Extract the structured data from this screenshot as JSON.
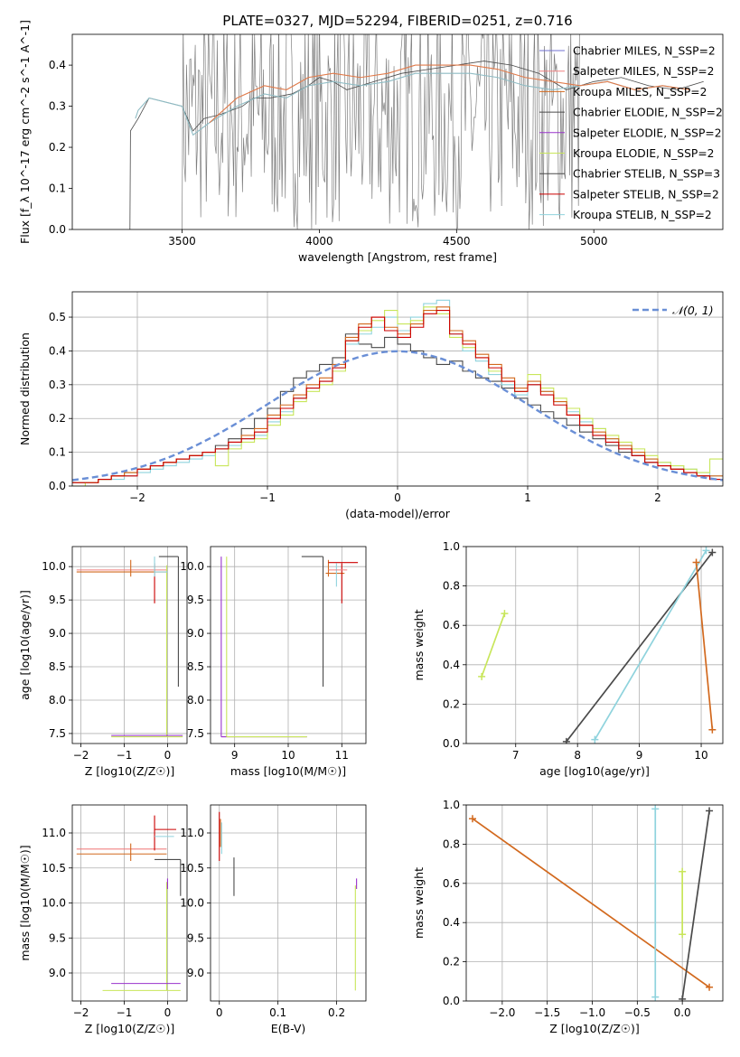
{
  "suptitle": "PLATE=0327, MJD=52294, FIBERID=0251, z=0.716",
  "chart_data": [
    {
      "id": "spectrum",
      "type": "line",
      "xlabel": "wavelength [Angstrom, rest frame]",
      "ylabel": "Flux [f_λ 10^-17 erg cm^-2 s^-1 A^-1]",
      "xlim": [
        3100,
        5470
      ],
      "ylim": [
        0,
        0.475
      ],
      "xticks": [
        3500,
        4000,
        4500,
        5000
      ],
      "yticks": [
        0.0,
        0.1,
        0.2,
        0.3,
        0.4
      ],
      "grid": false,
      "legend_position": "top-right",
      "data_spectrum": [
        [
          3310,
          0.0
        ],
        [
          3312,
          0.24
        ],
        [
          3340,
          0.27
        ],
        [
          3380,
          0.32
        ],
        [
          3440,
          0.31
        ],
        [
          3500,
          0.3
        ],
        [
          3540,
          0.24
        ],
        [
          3580,
          0.27
        ],
        [
          3640,
          0.28
        ],
        [
          3720,
          0.3
        ],
        [
          3760,
          0.32
        ],
        [
          3820,
          0.32
        ],
        [
          3900,
          0.33
        ],
        [
          3960,
          0.35
        ],
        [
          4000,
          0.37
        ],
        [
          4050,
          0.36
        ],
        [
          4100,
          0.34
        ],
        [
          4200,
          0.36
        ],
        [
          4300,
          0.38
        ],
        [
          4400,
          0.39
        ],
        [
          4500,
          0.4
        ],
        [
          4600,
          0.41
        ],
        [
          4700,
          0.4
        ],
        [
          4800,
          0.38
        ],
        [
          4900,
          0.34
        ],
        [
          5000,
          0.36
        ],
        [
          5100,
          0.37
        ],
        [
          5200,
          0.35
        ],
        [
          5300,
          0.34
        ],
        [
          5400,
          0.36
        ]
      ],
      "model_spectrum": [
        [
          3330,
          0.27
        ],
        [
          3340,
          0.29
        ],
        [
          3380,
          0.32
        ],
        [
          3440,
          0.31
        ],
        [
          3500,
          0.3
        ],
        [
          3540,
          0.23
        ],
        [
          3600,
          0.26
        ],
        [
          3700,
          0.3
        ],
        [
          3800,
          0.33
        ],
        [
          3880,
          0.32
        ],
        [
          3960,
          0.35
        ],
        [
          4050,
          0.36
        ],
        [
          4150,
          0.35
        ],
        [
          4250,
          0.36
        ],
        [
          4350,
          0.38
        ],
        [
          4450,
          0.38
        ],
        [
          4550,
          0.38
        ],
        [
          4650,
          0.37
        ],
        [
          4750,
          0.35
        ],
        [
          4850,
          0.34
        ],
        [
          4950,
          0.35
        ],
        [
          5050,
          0.36
        ],
        [
          5150,
          0.34
        ],
        [
          5250,
          0.35
        ],
        [
          5350,
          0.34
        ]
      ],
      "noisy_region": {
        "from": 3500,
        "to": 4950
      },
      "legend": [
        {
          "label": "Chabrier MILES, N_SSP=2",
          "color": "#7070d0"
        },
        {
          "label": "Salpeter MILES, N_SSP=2",
          "color": "#f08080"
        },
        {
          "label": "Kroupa MILES, N_SSP=2",
          "color": "#d2691e"
        },
        {
          "label": "Chabrier ELODIE, N_SSP=2",
          "color": "#4a4a4a"
        },
        {
          "label": "Salpeter ELODIE, N_SSP=2",
          "color": "#9932cc"
        },
        {
          "label": "Kroupa ELODIE, N_SSP=2",
          "color": "#c8e65a"
        },
        {
          "label": "Chabrier STELIB, N_SSP=3",
          "color": "#4a4a4a"
        },
        {
          "label": "Salpeter STELIB, N_SSP=2",
          "color": "#cc0000"
        },
        {
          "label": "Kroupa STELIB, N_SSP=2",
          "color": "#8fd3dd"
        }
      ]
    },
    {
      "id": "residuals",
      "type": "line",
      "xlabel": "(data-model)/error",
      "ylabel": "Normed distribution",
      "xlim": [
        -2.5,
        2.5
      ],
      "ylim": [
        0,
        0.575
      ],
      "xticks": [
        -2,
        -1,
        0,
        1,
        2
      ],
      "yticks": [
        0.0,
        0.1,
        0.2,
        0.3,
        0.4,
        0.5
      ],
      "grid": true,
      "legend_position": "top-right",
      "legend": [
        {
          "label": "𝒩(0, 1)",
          "color": "#6a8fd6"
        }
      ],
      "bin_edges": [
        -2.5,
        -2.4,
        -2.3,
        -2.2,
        -2.1,
        -2.0,
        -1.9,
        -1.8,
        -1.7,
        -1.6,
        -1.5,
        -1.4,
        -1.3,
        -1.2,
        -1.1,
        -1.0,
        -0.9,
        -0.8,
        -0.7,
        -0.6,
        -0.5,
        -0.4,
        -0.3,
        -0.2,
        -0.1,
        0.0,
        0.1,
        0.2,
        0.3,
        0.4,
        0.5,
        0.6,
        0.7,
        0.8,
        0.9,
        1.0,
        1.1,
        1.2,
        1.3,
        1.4,
        1.5,
        1.6,
        1.7,
        1.8,
        1.9,
        2.0,
        2.1,
        2.2,
        2.3,
        2.4,
        2.5
      ],
      "series": [
        {
          "color": "#4a4a4a",
          "values": [
            0.01,
            0.01,
            0.02,
            0.03,
            0.04,
            0.05,
            0.06,
            0.07,
            0.08,
            0.09,
            0.1,
            0.12,
            0.14,
            0.17,
            0.2,
            0.23,
            0.28,
            0.32,
            0.34,
            0.36,
            0.38,
            0.45,
            0.42,
            0.41,
            0.44,
            0.42,
            0.4,
            0.38,
            0.36,
            0.37,
            0.34,
            0.32,
            0.31,
            0.29,
            0.26,
            0.24,
            0.22,
            0.2,
            0.18,
            0.16,
            0.14,
            0.12,
            0.1,
            0.09,
            0.07,
            0.06,
            0.05,
            0.04,
            0.03,
            0.02
          ]
        },
        {
          "color": "#8fd3dd",
          "values": [
            0.0,
            0.01,
            0.02,
            0.02,
            0.03,
            0.04,
            0.05,
            0.06,
            0.07,
            0.08,
            0.09,
            0.11,
            0.12,
            0.14,
            0.15,
            0.19,
            0.22,
            0.26,
            0.29,
            0.31,
            0.35,
            0.42,
            0.45,
            0.47,
            0.5,
            0.46,
            0.5,
            0.54,
            0.55,
            0.45,
            0.4,
            0.37,
            0.33,
            0.3,
            0.27,
            0.3,
            0.28,
            0.25,
            0.22,
            0.19,
            0.17,
            0.14,
            0.12,
            0.1,
            0.08,
            0.07,
            0.06,
            0.05,
            0.04,
            0.03
          ]
        },
        {
          "color": "#c8e65a",
          "values": [
            0.0,
            0.01,
            0.02,
            0.03,
            0.04,
            0.05,
            0.06,
            0.07,
            0.08,
            0.09,
            0.1,
            0.06,
            0.11,
            0.13,
            0.14,
            0.18,
            0.21,
            0.25,
            0.28,
            0.3,
            0.34,
            0.43,
            0.46,
            0.49,
            0.52,
            0.48,
            0.49,
            0.53,
            0.51,
            0.44,
            0.41,
            0.38,
            0.34,
            0.31,
            0.28,
            0.33,
            0.29,
            0.26,
            0.23,
            0.2,
            0.17,
            0.15,
            0.13,
            0.11,
            0.09,
            0.07,
            0.06,
            0.05,
            0.04,
            0.08
          ]
        },
        {
          "color": "#d2691e",
          "values": [
            0.01,
            0.01,
            0.02,
            0.03,
            0.04,
            0.05,
            0.06,
            0.07,
            0.08,
            0.09,
            0.1,
            0.11,
            0.13,
            0.15,
            0.17,
            0.21,
            0.24,
            0.27,
            0.3,
            0.32,
            0.36,
            0.44,
            0.48,
            0.5,
            0.47,
            0.45,
            0.48,
            0.52,
            0.53,
            0.46,
            0.43,
            0.39,
            0.36,
            0.32,
            0.29,
            0.31,
            0.28,
            0.25,
            0.21,
            0.18,
            0.16,
            0.14,
            0.12,
            0.1,
            0.08,
            0.06,
            0.05,
            0.04,
            0.03,
            0.03
          ]
        },
        {
          "color": "#cc0000",
          "values": [
            0.01,
            0.01,
            0.02,
            0.03,
            0.03,
            0.05,
            0.06,
            0.07,
            0.08,
            0.09,
            0.1,
            0.11,
            0.13,
            0.14,
            0.16,
            0.2,
            0.23,
            0.26,
            0.29,
            0.31,
            0.35,
            0.43,
            0.47,
            0.5,
            0.46,
            0.44,
            0.47,
            0.51,
            0.52,
            0.45,
            0.42,
            0.38,
            0.35,
            0.31,
            0.28,
            0.3,
            0.27,
            0.24,
            0.21,
            0.18,
            0.15,
            0.13,
            0.11,
            0.09,
            0.07,
            0.06,
            0.05,
            0.04,
            0.03,
            0.02
          ]
        }
      ],
      "normal_curve": {
        "mean": 0,
        "sigma": 1
      }
    },
    {
      "id": "age-vs-Z",
      "type": "scatter",
      "xlabel": "Z [log10(Z/Z☉)]",
      "ylabel": "age [log10(age/yr)]",
      "xlim": [
        -2.2,
        0.45
      ],
      "ylim": [
        7.35,
        10.3
      ],
      "xticks": [
        -2,
        -1,
        0
      ],
      "yticks": [
        7.5,
        8.0,
        8.5,
        9.0,
        9.5,
        10.0
      ],
      "grid": true
    },
    {
      "id": "age-vs-mass",
      "type": "scatter",
      "xlabel": "mass [log10(M/M☉)]",
      "ylabel": "",
      "xlim": [
        8.55,
        11.45
      ],
      "ylim": [
        7.35,
        10.3
      ],
      "xticks": [
        9,
        10,
        11
      ],
      "yticks": [
        7.5,
        8.0,
        8.5,
        9.0,
        9.5,
        10.0
      ],
      "grid": true
    },
    {
      "id": "weight-vs-age",
      "type": "line",
      "xlabel": "age [log10(age/yr)]",
      "ylabel": "mass weight",
      "xlim": [
        6.2,
        10.35
      ],
      "ylim": [
        0,
        1.0
      ],
      "xticks": [
        7,
        8,
        9,
        10
      ],
      "yticks": [
        0.0,
        0.2,
        0.4,
        0.6,
        0.8,
        1.0
      ],
      "grid": true,
      "series": [
        {
          "color": "#c8e65a",
          "points": [
            [
              6.45,
              0.34
            ],
            [
              6.82,
              0.66
            ]
          ]
        },
        {
          "color": "#4a4a4a",
          "points": [
            [
              7.82,
              0.01
            ],
            [
              10.18,
              0.97
            ]
          ]
        },
        {
          "color": "#8fd3dd",
          "points": [
            [
              8.28,
              0.02
            ],
            [
              10.08,
              0.98
            ]
          ]
        },
        {
          "color": "#d2691e",
          "points": [
            [
              9.92,
              0.92
            ],
            [
              10.18,
              0.07
            ]
          ]
        }
      ]
    },
    {
      "id": "mass-vs-Z",
      "type": "scatter",
      "xlabel": "Z [log10(Z/Z☉)]",
      "ylabel": "mass [log10(M/M☉)]",
      "xlim": [
        -2.2,
        0.45
      ],
      "ylim": [
        8.6,
        11.4
      ],
      "xticks": [
        -2,
        -1,
        0
      ],
      "yticks": [
        9.0,
        9.5,
        10.0,
        10.5,
        11.0
      ],
      "grid": true
    },
    {
      "id": "mass-vs-EBV",
      "type": "scatter",
      "xlabel": "E(B-V)",
      "ylabel": "",
      "xlim": [
        -0.015,
        0.25
      ],
      "ylim": [
        8.6,
        11.4
      ],
      "xticks": [
        0.0,
        0.1,
        0.2
      ],
      "yticks": [
        9.0,
        9.5,
        10.0,
        10.5,
        11.0
      ],
      "grid": true
    },
    {
      "id": "weight-vs-Z",
      "type": "line",
      "xlabel": "Z [log10(Z/Z☉)]",
      "ylabel": "mass weight",
      "xlim": [
        -2.4,
        0.45
      ],
      "ylim": [
        0,
        1.0
      ],
      "xticks": [
        -2.0,
        -1.5,
        -1.0,
        -0.5,
        0.0
      ],
      "yticks": [
        0.0,
        0.2,
        0.4,
        0.6,
        0.8,
        1.0
      ],
      "grid": true,
      "series": [
        {
          "color": "#d2691e",
          "points": [
            [
              -2.33,
              0.93
            ],
            [
              0.3,
              0.07
            ]
          ]
        },
        {
          "color": "#8fd3dd",
          "points": [
            [
              -0.3,
              0.02
            ],
            [
              -0.3,
              0.98
            ]
          ]
        },
        {
          "color": "#c8e65a",
          "points": [
            [
              0.0,
              0.34
            ],
            [
              0.0,
              0.66
            ]
          ]
        },
        {
          "color": "#4a4a4a",
          "points": [
            [
              0.0,
              0.01
            ],
            [
              0.3,
              0.97
            ]
          ]
        }
      ]
    }
  ]
}
